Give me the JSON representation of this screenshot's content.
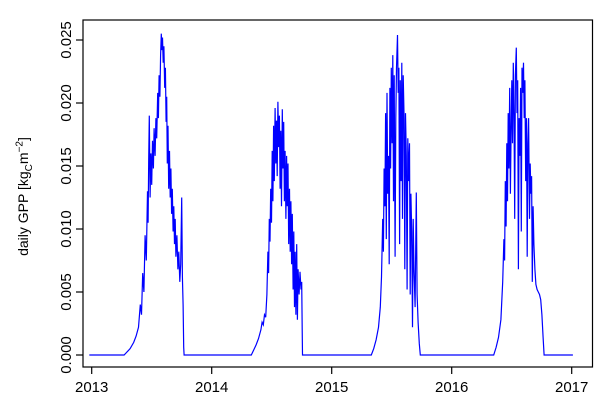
{
  "chart_data": {
    "type": "line",
    "title": "",
    "xlabel": "",
    "ylabel": "daily GPP [kg_C m^-2]",
    "ylabel_parts": [
      {
        "text": "daily GPP [kg",
        "style": "normal"
      },
      {
        "text": "C",
        "style": "sub"
      },
      {
        "text": "m",
        "style": "normal"
      },
      {
        "text": "−2",
        "style": "sup"
      },
      {
        "text": "]",
        "style": "normal"
      }
    ],
    "x_ticks": [
      "2013",
      "2014",
      "2015",
      "2016",
      "2017"
    ],
    "y_ticks": [
      "0.000",
      "0.005",
      "0.010",
      "0.015",
      "0.020",
      "0.025"
    ],
    "xlim": [
      2012.93,
      2017.17
    ],
    "ylim": [
      -0.0005,
      0.0266
    ],
    "grid": false,
    "legend": "none",
    "line_color": "#0000ff",
    "axis_color": "#000000",
    "background": "#ffffff",
    "series": [
      {
        "name": "daily GPP",
        "points": [
          [
            2012.98,
            0
          ],
          [
            2013.27,
            0
          ],
          [
            2013.29,
            0.0002
          ],
          [
            2013.32,
            0.0005
          ],
          [
            2013.35,
            0.001
          ],
          [
            2013.37,
            0.0015
          ],
          [
            2013.39,
            0.0022
          ],
          [
            2013.405,
            0.004
          ],
          [
            2013.415,
            0.0032
          ],
          [
            2013.425,
            0.0065
          ],
          [
            2013.435,
            0.005
          ],
          [
            2013.445,
            0.0095
          ],
          [
            2013.455,
            0.0075
          ],
          [
            2013.465,
            0.013
          ],
          [
            2013.47,
            0.0105
          ],
          [
            2013.475,
            0.0155
          ],
          [
            2013.48,
            0.019
          ],
          [
            2013.487,
            0.0125
          ],
          [
            2013.493,
            0.016
          ],
          [
            2013.5,
            0.0135
          ],
          [
            2013.507,
            0.017
          ],
          [
            2013.514,
            0.0148
          ],
          [
            2013.52,
            0.018
          ],
          [
            2013.528,
            0.0158
          ],
          [
            2013.535,
            0.0188
          ],
          [
            2013.542,
            0.0172
          ],
          [
            2013.55,
            0.0208
          ],
          [
            2013.556,
            0.0188
          ],
          [
            2013.562,
            0.0222
          ],
          [
            2013.568,
            0.0205
          ],
          [
            2013.574,
            0.0238
          ],
          [
            2013.58,
            0.0255
          ],
          [
            2013.585,
            0.0242
          ],
          [
            2013.59,
            0.0252
          ],
          [
            2013.596,
            0.0232
          ],
          [
            2013.602,
            0.0245
          ],
          [
            2013.608,
            0.0212
          ],
          [
            2013.614,
            0.0228
          ],
          [
            2013.62,
            0.0185
          ],
          [
            2013.625,
            0.0205
          ],
          [
            2013.63,
            0.0152
          ],
          [
            2013.636,
            0.0182
          ],
          [
            2013.642,
            0.0132
          ],
          [
            2013.648,
            0.0162
          ],
          [
            2013.654,
            0.0125
          ],
          [
            2013.66,
            0.0148
          ],
          [
            2013.666,
            0.0112
          ],
          [
            2013.672,
            0.0132
          ],
          [
            2013.678,
            0.0098
          ],
          [
            2013.684,
            0.0118
          ],
          [
            2013.69,
            0.0088
          ],
          [
            2013.696,
            0.0108
          ],
          [
            2013.702,
            0.0078
          ],
          [
            2013.71,
            0.0095
          ],
          [
            2013.718,
            0.0068
          ],
          [
            2013.726,
            0.0082
          ],
          [
            2013.734,
            0.0058
          ],
          [
            2013.742,
            0.0072
          ],
          [
            2013.75,
            0.0125
          ],
          [
            2013.756,
            0.0062
          ],
          [
            2013.762,
            0.004
          ],
          [
            2013.767,
            0.0006
          ],
          [
            2013.77,
            0
          ],
          [
            2014.33,
            0
          ],
          [
            2014.35,
            0.0004
          ],
          [
            2014.37,
            0.0008
          ],
          [
            2014.39,
            0.0013
          ],
          [
            2014.41,
            0.002
          ],
          [
            2014.42,
            0.0026
          ],
          [
            2014.43,
            0.0024
          ],
          [
            2014.44,
            0.0032
          ],
          [
            2014.45,
            0.003
          ],
          [
            2014.46,
            0.0048
          ],
          [
            2014.468,
            0.0082
          ],
          [
            2014.474,
            0.0065
          ],
          [
            2014.48,
            0.0108
          ],
          [
            2014.486,
            0.009
          ],
          [
            2014.492,
            0.0132
          ],
          [
            2014.498,
            0.0105
          ],
          [
            2014.504,
            0.0162
          ],
          [
            2014.51,
            0.0122
          ],
          [
            2014.516,
            0.0182
          ],
          [
            2014.522,
            0.0138
          ],
          [
            2014.528,
            0.0196
          ],
          [
            2014.534,
            0.0152
          ],
          [
            2014.54,
            0.0186
          ],
          [
            2014.546,
            0.0142
          ],
          [
            2014.552,
            0.0201
          ],
          [
            2014.558,
            0.0165
          ],
          [
            2014.564,
            0.019
          ],
          [
            2014.57,
            0.0132
          ],
          [
            2014.576,
            0.0178
          ],
          [
            2014.582,
            0.0118
          ],
          [
            2014.588,
            0.0195
          ],
          [
            2014.594,
            0.0148
          ],
          [
            2014.6,
            0.0185
          ],
          [
            2014.606,
            0.0122
          ],
          [
            2014.612,
            0.0162
          ],
          [
            2014.618,
            0.0108
          ],
          [
            2014.624,
            0.0158
          ],
          [
            2014.63,
            0.0118
          ],
          [
            2014.636,
            0.0152
          ],
          [
            2014.642,
            0.0088
          ],
          [
            2014.648,
            0.0132
          ],
          [
            2014.654,
            0.0082
          ],
          [
            2014.66,
            0.0122
          ],
          [
            2014.666,
            0.0072
          ],
          [
            2014.672,
            0.0112
          ],
          [
            2014.678,
            0.0052
          ],
          [
            2014.684,
            0.0098
          ],
          [
            2014.69,
            0.0038
          ],
          [
            2014.696,
            0.0082
          ],
          [
            2014.702,
            0.0032
          ],
          [
            2014.708,
            0.0088
          ],
          [
            2014.714,
            0.0028
          ],
          [
            2014.72,
            0.0068
          ],
          [
            2014.728,
            0.0048
          ],
          [
            2014.736,
            0.0066
          ],
          [
            2014.744,
            0.0052
          ],
          [
            2014.75,
            0.0058
          ],
          [
            2014.754,
            0.002
          ],
          [
            2014.757,
            0
          ],
          [
            2015.33,
            0
          ],
          [
            2015.35,
            0.0005
          ],
          [
            2015.37,
            0.0012
          ],
          [
            2015.39,
            0.0022
          ],
          [
            2015.405,
            0.0038
          ],
          [
            2015.415,
            0.0062
          ],
          [
            2015.425,
            0.0108
          ],
          [
            2015.431,
            0.0082
          ],
          [
            2015.437,
            0.0148
          ],
          [
            2015.443,
            0.0118
          ],
          [
            2015.449,
            0.0192
          ],
          [
            2015.455,
            0.0092
          ],
          [
            2015.461,
            0.0208
          ],
          [
            2015.467,
            0.0128
          ],
          [
            2015.473,
            0.0158
          ],
          [
            2015.479,
            0.0072
          ],
          [
            2015.485,
            0.0212
          ],
          [
            2015.491,
            0.0148
          ],
          [
            2015.497,
            0.0228
          ],
          [
            2015.503,
            0.0168
          ],
          [
            2015.509,
            0.0238
          ],
          [
            2015.515,
            0.0122
          ],
          [
            2015.521,
            0.0222
          ],
          [
            2015.528,
            0.0078
          ],
          [
            2015.534,
            0.0188
          ],
          [
            2015.54,
            0.0228
          ],
          [
            2015.548,
            0.0254
          ],
          [
            2015.554,
            0.0208
          ],
          [
            2015.56,
            0.0228
          ],
          [
            2015.566,
            0.0088
          ],
          [
            2015.572,
            0.0218
          ],
          [
            2015.578,
            0.0138
          ],
          [
            2015.584,
            0.0232
          ],
          [
            2015.59,
            0.0108
          ],
          [
            2015.596,
            0.0222
          ],
          [
            2015.603,
            0.0188
          ],
          [
            2015.609,
            0.0068
          ],
          [
            2015.615,
            0.0192
          ],
          [
            2015.622,
            0.0158
          ],
          [
            2015.628,
            0.0052
          ],
          [
            2015.634,
            0.0172
          ],
          [
            2015.641,
            0.0138
          ],
          [
            2015.648,
            0.0168
          ],
          [
            2015.654,
            0.0048
          ],
          [
            2015.66,
            0.0128
          ],
          [
            2015.667,
            0.0098
          ],
          [
            2015.673,
            0.0022
          ],
          [
            2015.679,
            0.0108
          ],
          [
            2015.686,
            0.0068
          ],
          [
            2015.695,
            0.0038
          ],
          [
            2015.705,
            0.0129
          ],
          [
            2015.712,
            0.0048
          ],
          [
            2015.72,
            0.0026
          ],
          [
            2015.73,
            0.0009
          ],
          [
            2015.738,
            0
          ],
          [
            2016.35,
            0
          ],
          [
            2016.37,
            0.0006
          ],
          [
            2016.39,
            0.0014
          ],
          [
            2016.41,
            0.0028
          ],
          [
            2016.425,
            0.0058
          ],
          [
            2016.435,
            0.0092
          ],
          [
            2016.441,
            0.0075
          ],
          [
            2016.447,
            0.0138
          ],
          [
            2016.453,
            0.0102
          ],
          [
            2016.459,
            0.0168
          ],
          [
            2016.465,
            0.0122
          ],
          [
            2016.471,
            0.0192
          ],
          [
            2016.477,
            0.0148
          ],
          [
            2016.483,
            0.0212
          ],
          [
            2016.489,
            0.0128
          ],
          [
            2016.495,
            0.0178
          ],
          [
            2016.501,
            0.0218
          ],
          [
            2016.507,
            0.0168
          ],
          [
            2016.513,
            0.0232
          ],
          [
            2016.519,
            0.0192
          ],
          [
            2016.525,
            0.0108
          ],
          [
            2016.531,
            0.0222
          ],
          [
            2016.538,
            0.0244
          ],
          [
            2016.544,
            0.0192
          ],
          [
            2016.55,
            0.0218
          ],
          [
            2016.556,
            0.0068
          ],
          [
            2016.562,
            0.0188
          ],
          [
            2016.568,
            0.0158
          ],
          [
            2016.574,
            0.0212
          ],
          [
            2016.58,
            0.0098
          ],
          [
            2016.586,
            0.0228
          ],
          [
            2016.592,
            0.0208
          ],
          [
            2016.598,
            0.0232
          ],
          [
            2016.604,
            0.0188
          ],
          [
            2016.61,
            0.0218
          ],
          [
            2016.617,
            0.0138
          ],
          [
            2016.623,
            0.0188
          ],
          [
            2016.629,
            0.0078
          ],
          [
            2016.635,
            0.0168
          ],
          [
            2016.641,
            0.0188
          ],
          [
            2016.648,
            0.0108
          ],
          [
            2016.654,
            0.0152
          ],
          [
            2016.66,
            0.0128
          ],
          [
            2016.666,
            0.0142
          ],
          [
            2016.672,
            0.0058
          ],
          [
            2016.678,
            0.0118
          ],
          [
            2016.685,
            0.0088
          ],
          [
            2016.693,
            0.0068
          ],
          [
            2016.702,
            0.0056
          ],
          [
            2016.712,
            0.0052
          ],
          [
            2016.722,
            0.005
          ],
          [
            2016.732,
            0.0048
          ],
          [
            2016.742,
            0.0044
          ],
          [
            2016.752,
            0.0032
          ],
          [
            2016.762,
            0.0014
          ],
          [
            2016.77,
            0
          ],
          [
            2017.01,
            0
          ]
        ]
      }
    ]
  }
}
